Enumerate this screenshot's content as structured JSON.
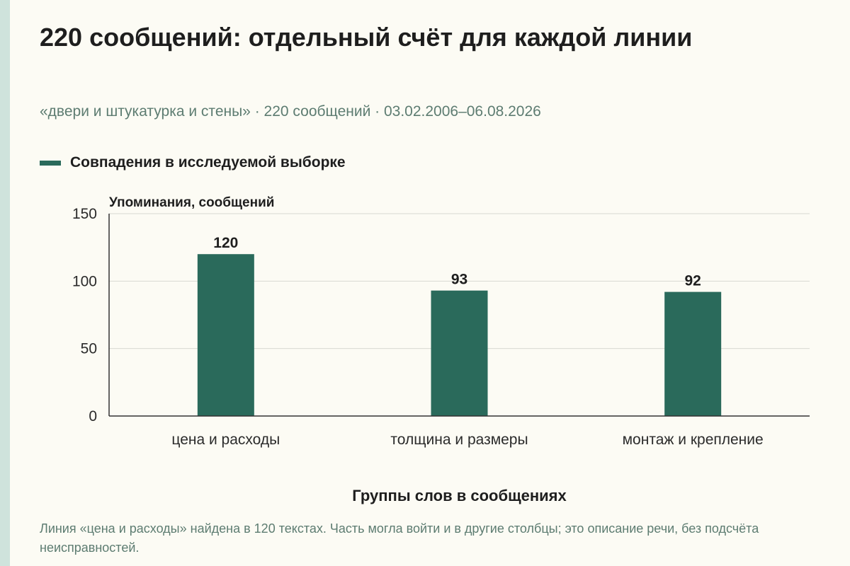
{
  "header": {
    "title": "220 сообщений: отдельный счёт для каждой линии",
    "subtitle": "«двери и штукатурка и стены» · 220 сообщений · 03.02.2006–06.08.2026"
  },
  "legend": {
    "label": "Совпадения в исследуемой выборке"
  },
  "colors": {
    "bar": "#2a6a5b",
    "accent_strip": "#cfe3dc",
    "muted_text": "#5d7c71"
  },
  "chart_data": {
    "type": "bar",
    "categories": [
      "цена и расходы",
      "толщина и размеры",
      "монтаж и крепление"
    ],
    "series": [
      {
        "name": "Совпадения в исследуемой выборке",
        "values": [
          120,
          93,
          92
        ]
      }
    ],
    "data_labels": [
      "120",
      "93",
      "92"
    ],
    "ylabel": "Упоминания, сообщений",
    "xlabel": "Группы слов в сообщениях",
    "ylim": [
      0,
      150
    ],
    "yticks": [
      0,
      50,
      100,
      150
    ],
    "grid": true,
    "legend_position": "top-left"
  },
  "footnote": {
    "text": "Линия «цена и расходы» найдена в 120 текстах. Часть могла войти и в другие столбцы; это описание речи, без подсчёта неисправностей."
  }
}
